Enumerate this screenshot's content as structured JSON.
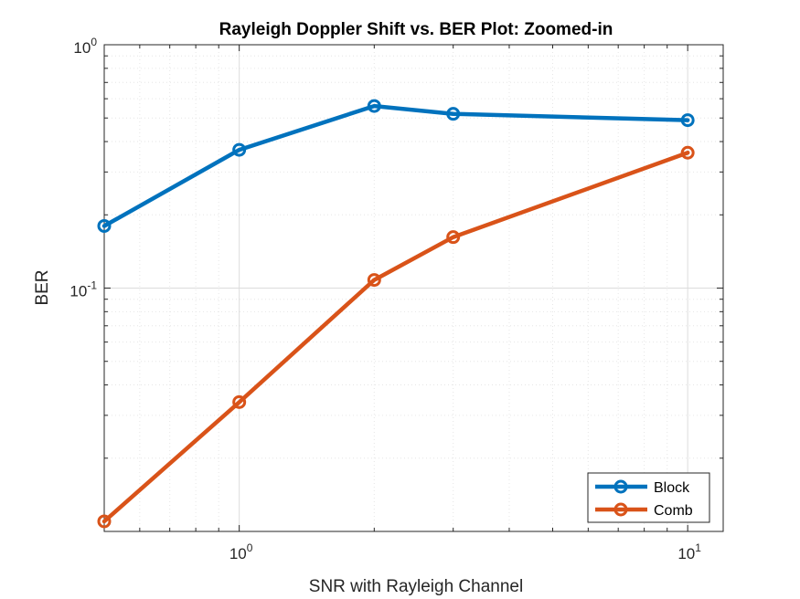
{
  "chart_data": {
    "type": "line",
    "title": "Rayleigh Doppler Shift vs. BER Plot: Zoomed-in",
    "xlabel": "SNR with Rayleigh Channel",
    "ylabel": "BER",
    "x_scale": "log",
    "y_scale": "log",
    "xlim": [
      0.5,
      12
    ],
    "ylim": [
      0.01,
      1
    ],
    "x_ticks": [
      {
        "base": "10",
        "exp": "0",
        "value": 1
      },
      {
        "base": "10",
        "exp": "1",
        "value": 10
      }
    ],
    "y_ticks": [
      {
        "base": "10",
        "exp": "0",
        "value": 1
      },
      {
        "base": "10",
        "exp": "-1",
        "value": 0.1
      }
    ],
    "grid": true,
    "minor_grid": true,
    "legend_position": "bottom-right",
    "series": [
      {
        "name": "Block",
        "color": "#0072BD",
        "x": [
          0.5,
          1,
          2,
          3,
          10
        ],
        "y": [
          0.18,
          0.37,
          0.56,
          0.52,
          0.49
        ]
      },
      {
        "name": "Comb",
        "color": "#D95319",
        "x": [
          0.5,
          1,
          2,
          3,
          10
        ],
        "y": [
          0.011,
          0.034,
          0.108,
          0.162,
          0.36
        ]
      }
    ]
  }
}
